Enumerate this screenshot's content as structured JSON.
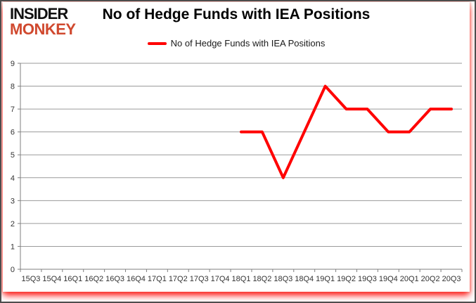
{
  "logo": {
    "line1": "INSIDER",
    "line2": "MONKEY",
    "line1_color": "#111111",
    "line2_color": "#d0492f"
  },
  "header": {
    "title": "No of Hedge Funds with IEA Positions"
  },
  "legend": {
    "label": "No of Hedge Funds with IEA Positions",
    "line_color": "#ff0000"
  },
  "chart_data": {
    "type": "line",
    "title": "No of Hedge Funds with IEA Positions",
    "xlabel": "",
    "ylabel": "",
    "categories": [
      "15Q3",
      "15Q4",
      "16Q1",
      "16Q2",
      "16Q3",
      "16Q4",
      "17Q1",
      "17Q2",
      "17Q3",
      "17Q4",
      "18Q1",
      "18Q2",
      "18Q3",
      "18Q4",
      "19Q1",
      "19Q2",
      "19Q3",
      "19Q4",
      "20Q1",
      "20Q2",
      "20Q3"
    ],
    "series": [
      {
        "name": "No of Hedge Funds with IEA Positions",
        "color": "#ff0000",
        "values": [
          null,
          null,
          null,
          null,
          null,
          null,
          null,
          null,
          null,
          null,
          6,
          6,
          4,
          6,
          8,
          7,
          7,
          6,
          6,
          7,
          7
        ]
      }
    ],
    "ylim": [
      0,
      9
    ],
    "ytick_interval": 1,
    "grid": "horizontal",
    "legend_position": "top-center",
    "gridline_color": "#9a9a9a",
    "axis_color": "#7f7f7f",
    "tick_label_color": "#333333",
    "line_width": 4
  }
}
